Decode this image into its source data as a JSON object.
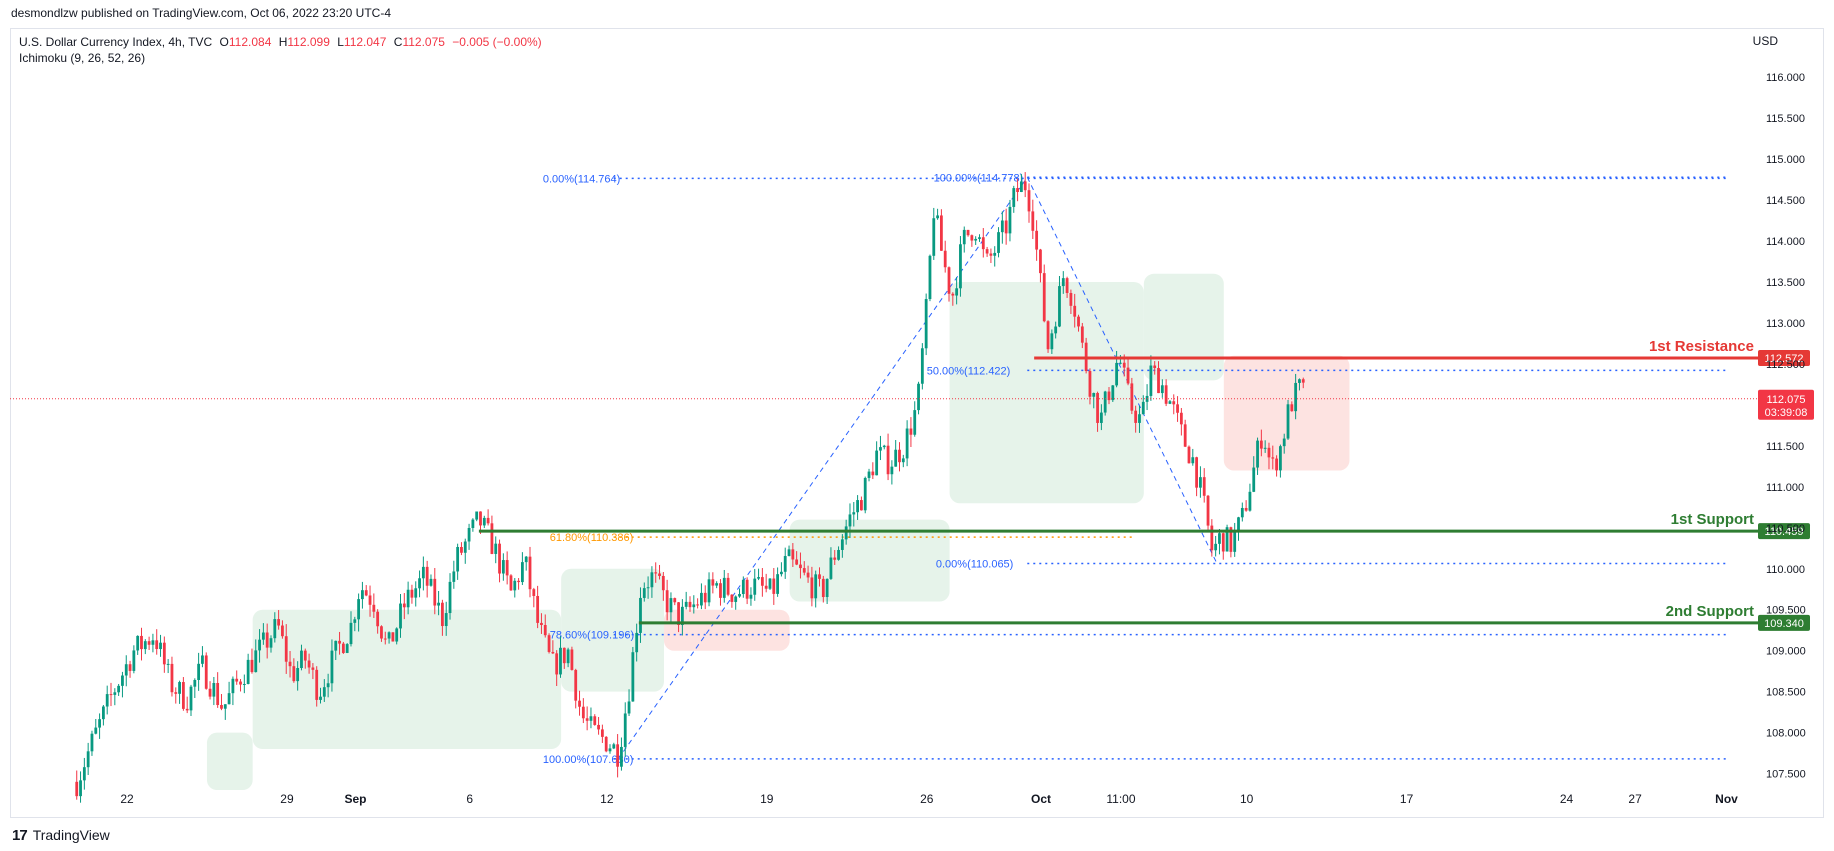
{
  "header": {
    "publisher": "desmondlzw published on TradingView.com, Oct 06, 2022 23:20 UTC-4"
  },
  "legend": {
    "symbol": "U.S. Dollar Currency Index, 4h, TVC",
    "open_label": "O",
    "open": "112.084",
    "high_label": "H",
    "high": "112.099",
    "low_label": "L",
    "low": "112.047",
    "close_label": "C",
    "close": "112.075",
    "change": "−0.005 (−0.00%)",
    "indicator": "Ichimoku (9, 26, 52, 26)"
  },
  "currency": "USD",
  "footer": {
    "logo": "17",
    "brand": "TradingView"
  },
  "colors": {
    "up": "#089981",
    "down": "#f23645",
    "fib": "#2962ff",
    "fib_text": "#2962ff",
    "fib_618": "#ff9800",
    "resistance": "#e53935",
    "support": "#2e7d32",
    "cloud_green": "#e6f3ea",
    "cloud_red": "#fde3e1"
  },
  "chart_data": {
    "type": "candlestick",
    "title": "",
    "ylim": [
      107.3,
      116.6
    ],
    "y_ticks": [
      "107.500",
      "108.000",
      "108.500",
      "109.000",
      "109.500",
      "110.000",
      "110.500",
      "111.000",
      "111.500",
      "112.000",
      "112.500",
      "113.000",
      "113.500",
      "114.000",
      "114.500",
      "115.000",
      "115.500",
      "116.000"
    ],
    "x_ticks": [
      {
        "label": "22",
        "day": 0
      },
      {
        "label": "29",
        "day": 7
      },
      {
        "label": "Sep",
        "day": 10
      },
      {
        "label": "6",
        "day": 15
      },
      {
        "label": "12",
        "day": 21
      },
      {
        "label": "19",
        "day": 28
      },
      {
        "label": "26",
        "day": 35
      },
      {
        "label": "Oct",
        "day": 40
      },
      {
        "label": "11:00",
        "day": 43.5
      },
      {
        "label": "10",
        "day": 49
      },
      {
        "label": "17",
        "day": 56
      },
      {
        "label": "24",
        "day": 63
      },
      {
        "label": "27",
        "day": 66
      },
      {
        "label": "Nov",
        "day": 70
      }
    ],
    "x_unit": "days since Aug 22, 2022",
    "path": [
      [
        -2.2,
        107.4
      ],
      [
        -1.5,
        107.9
      ],
      [
        -0.6,
        108.5
      ],
      [
        0.3,
        109.0
      ],
      [
        1.2,
        109.2
      ],
      [
        1.9,
        108.6
      ],
      [
        2.6,
        108.4
      ],
      [
        3.3,
        108.8
      ],
      [
        4.2,
        108.3
      ],
      [
        5.0,
        108.7
      ],
      [
        5.8,
        109.0
      ],
      [
        6.6,
        109.3
      ],
      [
        7.2,
        108.7
      ],
      [
        7.8,
        108.9
      ],
      [
        8.4,
        108.5
      ],
      [
        9.2,
        109.0
      ],
      [
        9.8,
        109.3
      ],
      [
        10.2,
        109.8
      ],
      [
        10.8,
        109.6
      ],
      [
        11.4,
        109.0
      ],
      [
        12.2,
        109.6
      ],
      [
        13.0,
        109.9
      ],
      [
        13.8,
        109.4
      ],
      [
        14.4,
        110.1
      ],
      [
        15.0,
        110.4
      ],
      [
        15.4,
        110.6
      ],
      [
        16.0,
        110.3
      ],
      [
        16.8,
        109.7
      ],
      [
        17.4,
        110.1
      ],
      [
        18.0,
        109.3
      ],
      [
        18.6,
        108.8
      ],
      [
        19.3,
        109.0
      ],
      [
        19.9,
        108.2
      ],
      [
        20.4,
        108.0
      ],
      [
        21.0,
        107.9
      ],
      [
        21.5,
        107.75
      ],
      [
        22.0,
        108.6
      ],
      [
        22.5,
        109.8
      ],
      [
        23.0,
        109.9
      ],
      [
        23.6,
        109.6
      ],
      [
        24.2,
        109.4
      ],
      [
        25.0,
        109.6
      ],
      [
        25.8,
        109.8
      ],
      [
        26.6,
        109.7
      ],
      [
        27.4,
        109.8
      ],
      [
        28.2,
        109.7
      ],
      [
        28.9,
        110.1
      ],
      [
        29.6,
        109.9
      ],
      [
        30.4,
        109.7
      ],
      [
        31.0,
        110.2
      ],
      [
        31.6,
        110.6
      ],
      [
        32.2,
        110.9
      ],
      [
        32.8,
        111.4
      ],
      [
        33.4,
        111.3
      ],
      [
        34.0,
        111.5
      ],
      [
        34.6,
        112.0
      ],
      [
        35.0,
        113.2
      ],
      [
        35.3,
        114.4
      ],
      [
        35.7,
        113.8
      ],
      [
        36.1,
        113.3
      ],
      [
        36.6,
        114.0
      ],
      [
        37.1,
        114.2
      ],
      [
        37.6,
        113.7
      ],
      [
        38.0,
        113.9
      ],
      [
        38.5,
        114.2
      ],
      [
        38.9,
        114.6
      ],
      [
        39.3,
        114.7
      ],
      [
        39.6,
        114.4
      ],
      [
        40.0,
        113.4
      ],
      [
        40.3,
        112.7
      ],
      [
        40.7,
        113.2
      ],
      [
        41.0,
        113.6
      ],
      [
        41.4,
        113.3
      ],
      [
        41.8,
        112.7
      ],
      [
        42.2,
        112.2
      ],
      [
        42.6,
        111.8
      ],
      [
        43.0,
        112.2
      ],
      [
        43.4,
        112.6
      ],
      [
        43.9,
        112.0
      ],
      [
        44.4,
        111.8
      ],
      [
        44.8,
        112.4
      ],
      [
        45.2,
        112.3
      ],
      [
        45.7,
        112.0
      ],
      [
        46.2,
        111.6
      ],
      [
        46.7,
        111.3
      ],
      [
        47.1,
        110.8
      ],
      [
        47.5,
        110.2
      ],
      [
        47.9,
        110.4
      ],
      [
        48.3,
        110.3
      ],
      [
        48.8,
        110.6
      ],
      [
        49.3,
        111.2
      ],
      [
        49.7,
        111.7
      ],
      [
        50.1,
        111.2
      ],
      [
        50.5,
        111.5
      ],
      [
        50.9,
        112.0
      ],
      [
        51.3,
        112.2
      ],
      [
        51.6,
        112.1
      ]
    ],
    "cloud": [
      {
        "from": 3.5,
        "to": 5.5,
        "color": "green",
        "top": 108.0,
        "bottom": 107.3
      },
      {
        "from": 5.5,
        "to": 19.0,
        "color": "green",
        "top": 109.5,
        "bottom": 107.8
      },
      {
        "from": 19.0,
        "to": 23.5,
        "color": "green",
        "top": 110.0,
        "bottom": 108.5
      },
      {
        "from": 23.5,
        "to": 29.0,
        "color": "red",
        "top": 109.5,
        "bottom": 109.0
      },
      {
        "from": 29.0,
        "to": 36.0,
        "color": "green",
        "top": 110.6,
        "bottom": 109.6
      },
      {
        "from": 36.0,
        "to": 44.5,
        "color": "green",
        "top": 113.5,
        "bottom": 110.8
      },
      {
        "from": 44.5,
        "to": 48.0,
        "color": "green",
        "top": 113.6,
        "bottom": 112.3
      },
      {
        "from": 48.0,
        "to": 53.5,
        "color": "red",
        "top": 112.6,
        "bottom": 111.2
      }
    ],
    "fibs": [
      {
        "label": "0.00%(114.764)",
        "price": 114.764,
        "from": 21.3,
        "to": 70,
        "label_day": 18.2
      },
      {
        "label": "100.00%(114.778)",
        "price": 114.778,
        "from": 39.4,
        "to": 70,
        "label_day": 35.3
      },
      {
        "label": "50.00%(112.422)",
        "price": 112.422,
        "from": 39.4,
        "to": 70,
        "label_day": 35.0
      },
      {
        "label": "61.80%(110.386)",
        "price": 110.386,
        "from": 21.3,
        "to": 44.0,
        "label_day": 18.5,
        "color": "orange"
      },
      {
        "label": "0.00%(110.065)",
        "price": 110.065,
        "from": 39.4,
        "to": 70,
        "label_day": 35.4
      },
      {
        "label": "78.60%(109.196)",
        "price": 109.196,
        "from": 21.3,
        "to": 70,
        "label_day": 18.5
      },
      {
        "label": "100.00%(107.680)",
        "price": 107.68,
        "from": 21.3,
        "to": 70,
        "label_day": 18.2
      }
    ],
    "levels": [
      {
        "name": "1st Resistance",
        "price": 112.572,
        "value_label": "112.572",
        "color": "red",
        "from": 39.7
      },
      {
        "name": "1st Support",
        "price": 110.459,
        "value_label": "110.459",
        "color": "green",
        "from": 15.4
      },
      {
        "name": "2nd Support",
        "price": 109.34,
        "value_label": "109.340",
        "color": "green",
        "from": 22.4
      }
    ],
    "current": {
      "price": 112.075,
      "value_label": "112.075",
      "countdown": "03:39:08"
    }
  }
}
